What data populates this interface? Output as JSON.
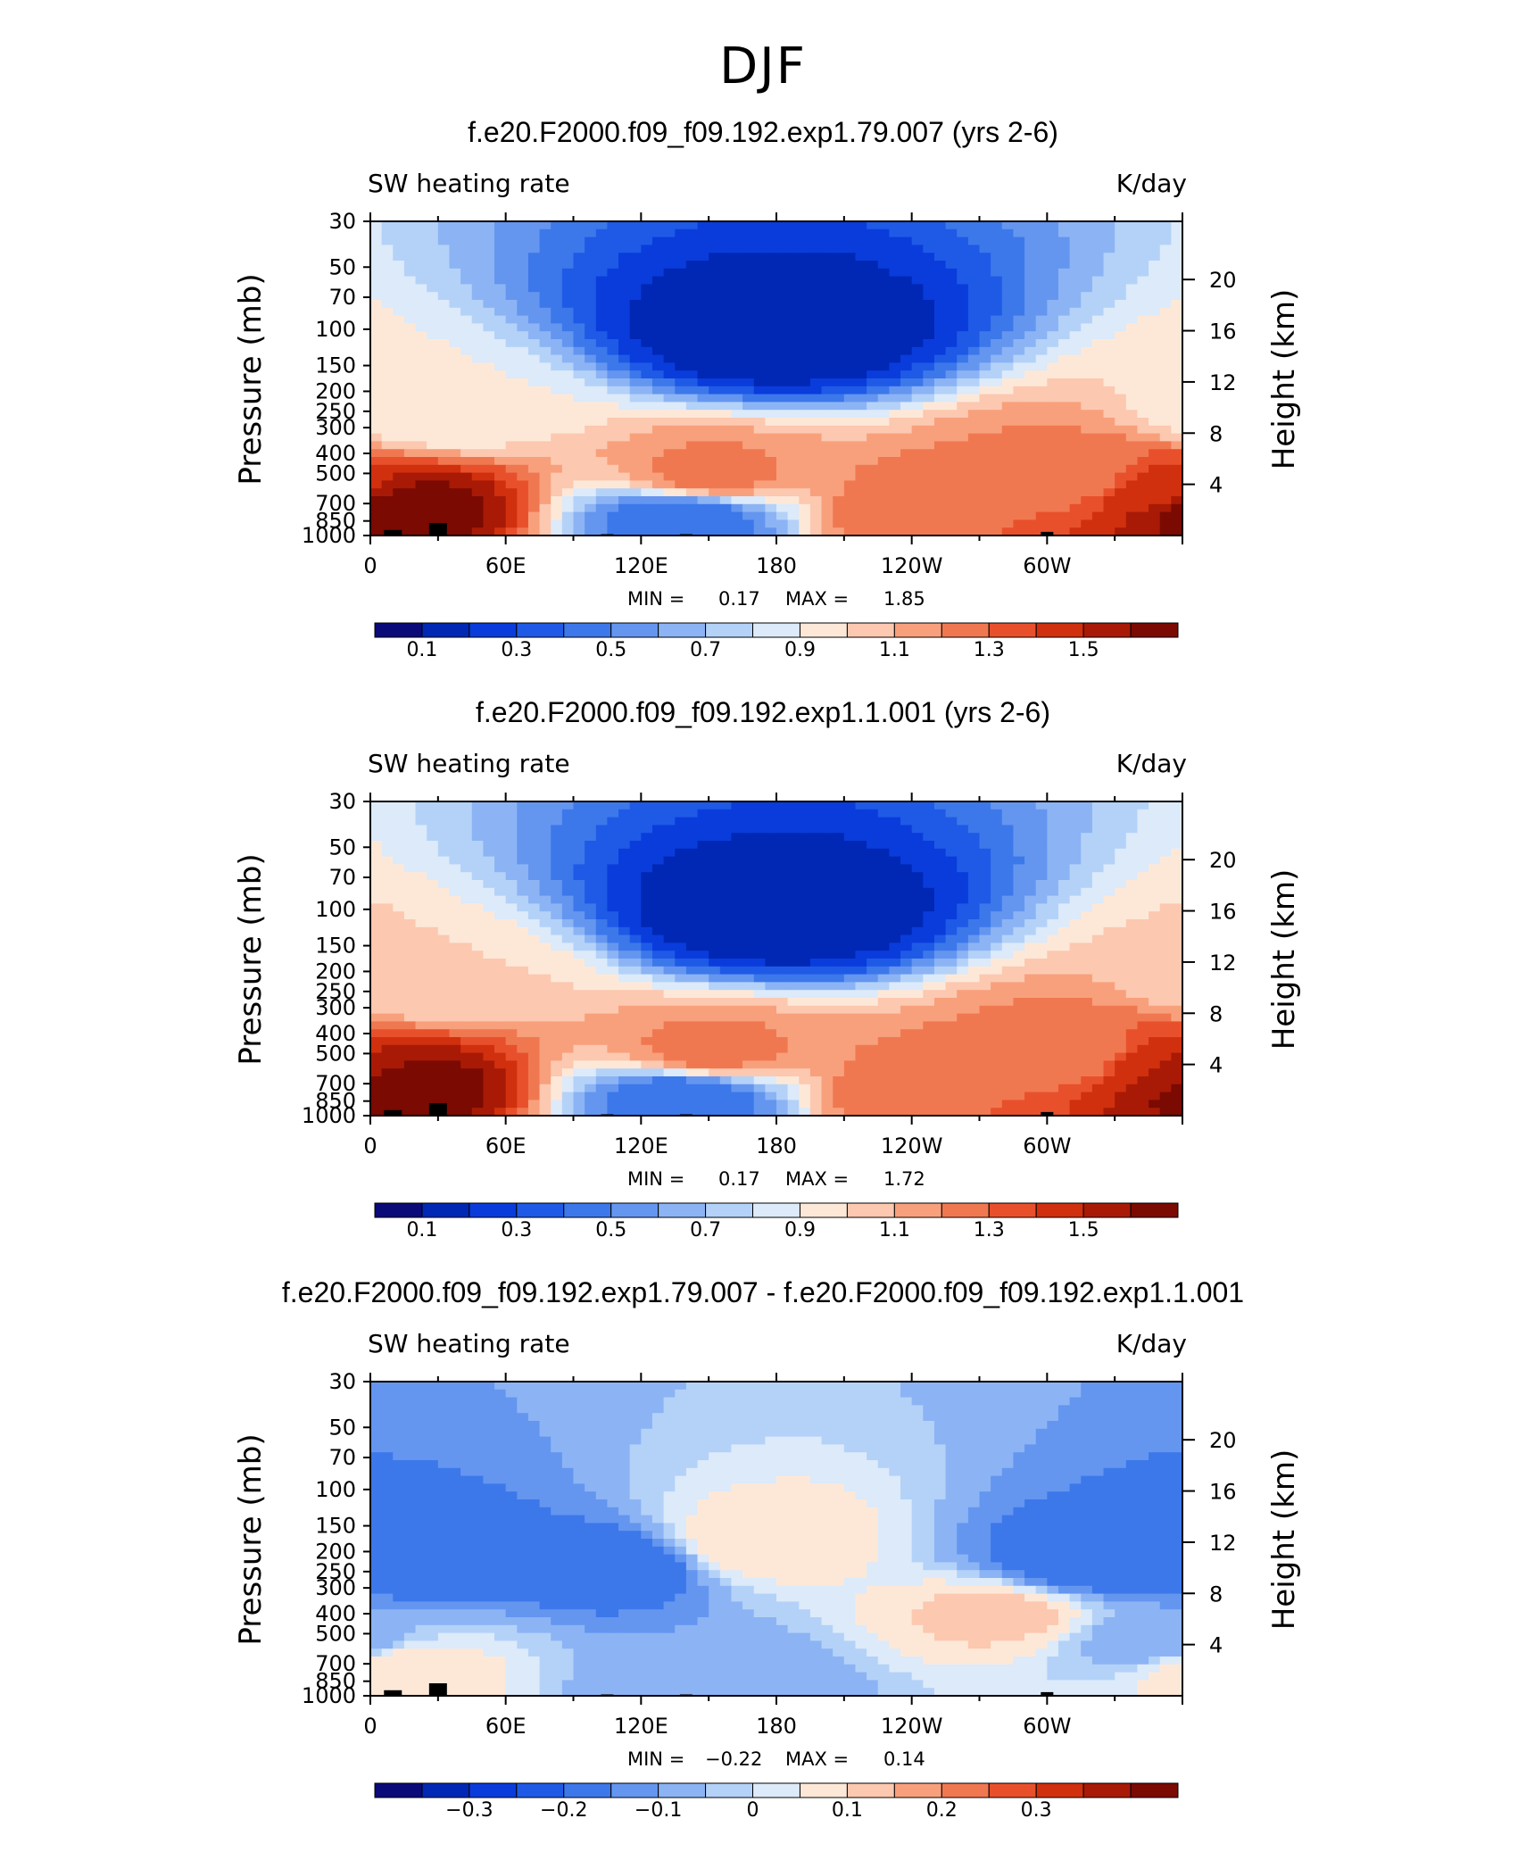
{
  "figure_title": "DJF",
  "colors": {
    "heating_scale": [
      "#0a0a78",
      "#0028b4",
      "#0a3cdc",
      "#1e5ae6",
      "#3c78ea",
      "#6496f0",
      "#8cb4f4",
      "#b4d2f8",
      "#dceafa",
      "#fde8d8",
      "#fcc8b0",
      "#f8a07c",
      "#f07850",
      "#e8502c",
      "#d0300e",
      "#a81a06",
      "#7a0a02"
    ],
    "diff_scale": [
      "#0a0a78",
      "#0028b4",
      "#0a3cdc",
      "#1e5ae6",
      "#3c78ea",
      "#6496f0",
      "#8cb4f4",
      "#b4d2f8",
      "#dceafa",
      "#fde8d8",
      "#fcc8b0",
      "#f8a07c",
      "#f07850",
      "#e8502c",
      "#d0300e",
      "#a81a06",
      "#7a0a02"
    ],
    "topography": "#000000"
  },
  "panels": [
    {
      "title": "f.e20.F2000.f09_f09.192.exp1.79.007 (yrs 2-6)",
      "left_label": "SW heating rate",
      "right_label": "K/day",
      "y_axis_label": "Pressure (mb)",
      "y2_axis_label": "Height (km)",
      "stats": {
        "min_label": "MIN =",
        "min_value": "0.17",
        "max_label": "MAX =",
        "max_value": "1.85"
      },
      "colorbar_labels": [
        "0.1",
        "0.3",
        "0.5",
        "0.7",
        "0.9",
        "1.1",
        "1.3",
        "1.5"
      ],
      "colorbar_label_positions": [
        1,
        3,
        5,
        7,
        9,
        11,
        13,
        15
      ],
      "scale": "heating_scale"
    },
    {
      "title": "f.e20.F2000.f09_f09.192.exp1.1.001 (yrs 2-6)",
      "left_label": "SW heating rate",
      "right_label": "K/day",
      "y_axis_label": "Pressure (mb)",
      "y2_axis_label": "Height (km)",
      "stats": {
        "min_label": "MIN =",
        "min_value": "0.17",
        "max_label": "MAX =",
        "max_value": "1.72"
      },
      "colorbar_labels": [
        "0.1",
        "0.3",
        "0.5",
        "0.7",
        "0.9",
        "1.1",
        "1.3",
        "1.5"
      ],
      "colorbar_label_positions": [
        1,
        3,
        5,
        7,
        9,
        11,
        13,
        15
      ],
      "scale": "heating_scale"
    },
    {
      "title": "f.e20.F2000.f09_f09.192.exp1.79.007 - f.e20.F2000.f09_f09.192.exp1.1.001",
      "left_label": "SW heating rate",
      "right_label": "K/day",
      "y_axis_label": "Pressure (mb)",
      "y2_axis_label": "Height (km)",
      "stats": {
        "min_label": "MIN =",
        "min_value": "−0.22",
        "max_label": "MAX =",
        "max_value": "0.14"
      },
      "colorbar_labels": [
        "−0.3",
        "−0.2",
        "−0.1",
        "0",
        "0.1",
        "0.2",
        "0.3"
      ],
      "colorbar_label_positions": [
        2,
        4,
        6,
        8,
        10,
        12,
        14
      ],
      "scale": "diff_scale"
    }
  ],
  "chart_data": [
    {
      "type": "heatmap",
      "title": "f.e20.F2000.f09_f09.192.exp1.79.007 (yrs 2-6)",
      "xlabel": "",
      "ylabel": "Pressure (mb)",
      "y2label": "Height (km)",
      "units": "K/day",
      "x_ticks": [
        "0",
        "60E",
        "120E",
        "180",
        "120W",
        "60W"
      ],
      "x_tick_values": [
        0,
        60,
        120,
        180,
        240,
        300
      ],
      "xlim": [
        0,
        360
      ],
      "y_ticks": [
        "30",
        "50",
        "70",
        "100",
        "150",
        "200",
        "250",
        "300",
        "400",
        "500",
        "700",
        "850",
        "1000"
      ],
      "y_tick_values": [
        30,
        50,
        70,
        100,
        150,
        200,
        250,
        300,
        400,
        500,
        700,
        850,
        1000
      ],
      "ylim": [
        1000,
        30
      ],
      "y_scale": "log",
      "y2_ticks": [
        "20",
        "16",
        "12",
        "8",
        "4"
      ],
      "y2_tick_values": [
        20,
        16,
        12,
        8,
        4
      ],
      "min": 0.17,
      "max": 1.85,
      "contour_levels": [
        0.0,
        0.1,
        0.2,
        0.3,
        0.4,
        0.5,
        0.6,
        0.7,
        0.8,
        0.9,
        1.0,
        1.1,
        1.2,
        1.3,
        1.4,
        1.5,
        1.6
      ],
      "features": [
        {
          "lon": 12,
          "p": 720,
          "value": 1.7
        },
        {
          "lon": 30,
          "p": 260,
          "value": 0.9
        },
        {
          "lon": 150,
          "p": 520,
          "value": 1.25
        },
        {
          "lon": 140,
          "p": 800,
          "value": 0.4
        },
        {
          "lon": 245,
          "p": 780,
          "value": 1.3
        },
        {
          "lon": 310,
          "p": 520,
          "value": 1.2
        },
        {
          "lon": 350,
          "p": 620,
          "value": 1.45
        },
        {
          "lon": 180,
          "p": 110,
          "value": 0.1
        }
      ],
      "topography": [
        {
          "lon": 10,
          "p": 940
        },
        {
          "lon": 30,
          "p": 870
        },
        {
          "lon": 105,
          "p": 985
        },
        {
          "lon": 140,
          "p": 985
        },
        {
          "lon": 300,
          "p": 960
        }
      ]
    },
    {
      "type": "heatmap",
      "title": "f.e20.F2000.f09_f09.192.exp1.1.001 (yrs 2-6)",
      "xlabel": "",
      "ylabel": "Pressure (mb)",
      "y2label": "Height (km)",
      "units": "K/day",
      "x_ticks": [
        "0",
        "60E",
        "120E",
        "180",
        "120W",
        "60W"
      ],
      "x_tick_values": [
        0,
        60,
        120,
        180,
        240,
        300
      ],
      "xlim": [
        0,
        360
      ],
      "y_ticks": [
        "30",
        "50",
        "70",
        "100",
        "150",
        "200",
        "250",
        "300",
        "400",
        "500",
        "700",
        "850",
        "1000"
      ],
      "y_tick_values": [
        30,
        50,
        70,
        100,
        150,
        200,
        250,
        300,
        400,
        500,
        700,
        850,
        1000
      ],
      "ylim": [
        1000,
        30
      ],
      "y_scale": "log",
      "y2_ticks": [
        "20",
        "16",
        "12",
        "8",
        "4"
      ],
      "y2_tick_values": [
        20,
        16,
        12,
        8,
        4
      ],
      "min": 0.17,
      "max": 1.72,
      "contour_levels": [
        0.0,
        0.1,
        0.2,
        0.3,
        0.4,
        0.5,
        0.6,
        0.7,
        0.8,
        0.9,
        1.0,
        1.1,
        1.2,
        1.3,
        1.4,
        1.5,
        1.6
      ],
      "features": [
        {
          "lon": 12,
          "p": 720,
          "value": 1.7
        },
        {
          "lon": 30,
          "p": 230,
          "value": 1.0
        },
        {
          "lon": 150,
          "p": 500,
          "value": 1.25
        },
        {
          "lon": 140,
          "p": 800,
          "value": 0.4
        },
        {
          "lon": 245,
          "p": 780,
          "value": 1.3
        },
        {
          "lon": 310,
          "p": 520,
          "value": 1.2
        },
        {
          "lon": 350,
          "p": 620,
          "value": 1.5
        },
        {
          "lon": 180,
          "p": 110,
          "value": 0.1
        }
      ],
      "topography": [
        {
          "lon": 10,
          "p": 940
        },
        {
          "lon": 30,
          "p": 870
        },
        {
          "lon": 105,
          "p": 985
        },
        {
          "lon": 140,
          "p": 985
        },
        {
          "lon": 300,
          "p": 960
        }
      ]
    },
    {
      "type": "heatmap",
      "title": "f.e20.F2000.f09_f09.192.exp1.79.007 - f.e20.F2000.f09_f09.192.exp1.1.001",
      "xlabel": "",
      "ylabel": "Pressure (mb)",
      "y2label": "Height (km)",
      "units": "K/day",
      "x_ticks": [
        "0",
        "60E",
        "120E",
        "180",
        "120W",
        "60W"
      ],
      "x_tick_values": [
        0,
        60,
        120,
        180,
        240,
        300
      ],
      "xlim": [
        0,
        360
      ],
      "y_ticks": [
        "30",
        "50",
        "70",
        "100",
        "150",
        "200",
        "250",
        "300",
        "400",
        "500",
        "700",
        "850",
        "1000"
      ],
      "y_tick_values": [
        30,
        50,
        70,
        100,
        150,
        200,
        250,
        300,
        400,
        500,
        700,
        850,
        1000
      ],
      "ylim": [
        1000,
        30
      ],
      "y_scale": "log",
      "y2_ticks": [
        "20",
        "16",
        "12",
        "8",
        "4"
      ],
      "y2_tick_values": [
        20,
        16,
        12,
        8,
        4
      ],
      "min": -0.22,
      "max": 0.14,
      "contour_levels": [
        -0.4,
        -0.35,
        -0.3,
        -0.25,
        -0.2,
        -0.15,
        -0.1,
        -0.05,
        0.0,
        0.05,
        0.1,
        0.15,
        0.2,
        0.25,
        0.3,
        0.35,
        0.4
      ],
      "features": [
        {
          "lon": 18,
          "p": 220,
          "value": -0.2
        },
        {
          "lon": 110,
          "p": 230,
          "value": -0.2
        },
        {
          "lon": 315,
          "p": 230,
          "value": -0.2
        },
        {
          "lon": 280,
          "p": 400,
          "value": 0.12
        },
        {
          "lon": 12,
          "p": 720,
          "value": 0.1
        },
        {
          "lon": 170,
          "p": 180,
          "value": 0.1
        },
        {
          "lon": 150,
          "p": 850,
          "value": -0.1
        },
        {
          "lon": 350,
          "p": 550,
          "value": -0.1
        }
      ],
      "topography": [
        {
          "lon": 10,
          "p": 940
        },
        {
          "lon": 30,
          "p": 870
        },
        {
          "lon": 105,
          "p": 985
        },
        {
          "lon": 140,
          "p": 985
        },
        {
          "lon": 300,
          "p": 960
        }
      ]
    }
  ]
}
